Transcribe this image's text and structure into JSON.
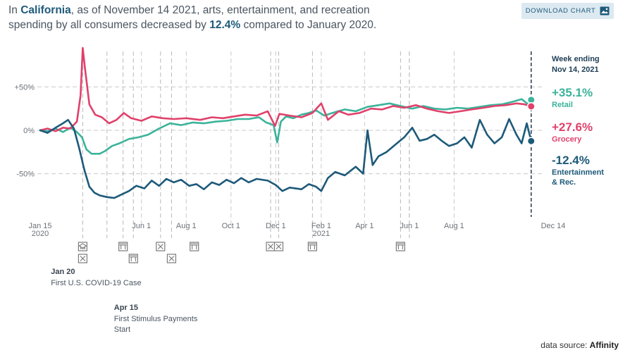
{
  "headline": {
    "prefix": "In ",
    "state": "California",
    "middle": ", as of November 14 2021, arts, entertainment, and recreation spending by all consumers decreased by ",
    "pct": "12.4%",
    "suffix": " compared to January 2020."
  },
  "download_button": {
    "label": "DOWNLOAD CHART",
    "icon": "image-icon"
  },
  "credit": {
    "label": "data source: ",
    "source": "Affinity"
  },
  "colors": {
    "retail": "#3bb39b",
    "grocery": "#e0416b",
    "entertainment": "#1d5a7a",
    "grid": "#c9c9c9",
    "axis_text": "#6b7178"
  },
  "chart_data": {
    "type": "line",
    "title": "",
    "xlabel": "",
    "ylabel": "",
    "ylim": [
      -95,
      95
    ],
    "x_range": [
      "2020-01-15",
      "2021-12-14"
    ],
    "y_ticks": [
      {
        "value": 50,
        "label": "+50%"
      },
      {
        "value": 0,
        "label": "0%"
      },
      {
        "value": -50,
        "label": "-50%"
      }
    ],
    "x_ticks": [
      {
        "date": "2020-01-15",
        "label": "Jan 15",
        "label2": "2020",
        "grid": false
      },
      {
        "date": "2020-06-01",
        "label": "Jun 1",
        "label2": "",
        "grid": true
      },
      {
        "date": "2020-08-01",
        "label": "Aug 1",
        "label2": "",
        "grid": true
      },
      {
        "date": "2020-10-01",
        "label": "Oct 1",
        "label2": "",
        "grid": true
      },
      {
        "date": "2020-12-01",
        "label": "Dec 1",
        "label2": "",
        "grid": true
      },
      {
        "date": "2021-02-01",
        "label": "Feb 1",
        "label2": "2021",
        "grid": true
      },
      {
        "date": "2021-04-01",
        "label": "Apr 1",
        "label2": "",
        "grid": true
      },
      {
        "date": "2021-06-01",
        "label": "Jun 1",
        "label2": "",
        "grid": true
      },
      {
        "date": "2021-08-01",
        "label": "Aug 1",
        "label2": "",
        "grid": true
      },
      {
        "date": "2021-12-14",
        "label": "Dec 14",
        "label2": "",
        "grid": false
      }
    ],
    "event_lines": [
      "2020-03-13",
      "2020-04-15",
      "2020-05-07",
      "2020-05-21",
      "2020-06-27",
      "2020-07-12",
      "2020-11-24",
      "2020-12-05",
      "2021-01-20",
      "2021-05-20",
      "2021-06-01"
    ],
    "event_icons": [
      {
        "date": "2020-03-13",
        "row": 1,
        "icon": "school-icon"
      },
      {
        "date": "2020-03-13",
        "row": 2,
        "icon": "closed-icon"
      },
      {
        "date": "2020-05-07",
        "row": 1,
        "icon": "store-icon"
      },
      {
        "date": "2020-05-21",
        "row": 2,
        "icon": "store-icon"
      },
      {
        "date": "2020-06-27",
        "row": 1,
        "icon": "closed-icon"
      },
      {
        "date": "2020-07-12",
        "row": 2,
        "icon": "closed-icon"
      },
      {
        "date": "2020-08-12",
        "row": 1,
        "icon": "store-icon"
      },
      {
        "date": "2020-11-24",
        "row": 1,
        "icon": "closed-icon"
      },
      {
        "date": "2020-12-05",
        "row": 1,
        "icon": "closed-icon"
      },
      {
        "date": "2021-01-20",
        "row": 1,
        "icon": "store-icon"
      },
      {
        "date": "2021-05-20",
        "row": 1,
        "icon": "store-icon"
      }
    ],
    "annotations": [
      {
        "date": "2020-01-20",
        "title": "Jan 20",
        "lines": [
          "First U.S. COVID-19 Case"
        ]
      },
      {
        "date": "2020-04-15",
        "title": "Apr 15",
        "lines": [
          "First Stimulus Payments",
          "Start"
        ]
      }
    ],
    "week_ending": {
      "date": "2021-11-14",
      "label1": "Week ending",
      "label2": "Nov 14, 2021"
    },
    "series": [
      {
        "name": "Retail",
        "key": "retail",
        "end_label": "+35.1%",
        "end_value": 35.1,
        "points": [
          [
            "2020-01-15",
            0
          ],
          [
            "2020-01-25",
            -1
          ],
          [
            "2020-02-05",
            2
          ],
          [
            "2020-02-15",
            -2
          ],
          [
            "2020-02-25",
            3
          ],
          [
            "2020-03-05",
            -2
          ],
          [
            "2020-03-12",
            -8
          ],
          [
            "2020-03-18",
            -22
          ],
          [
            "2020-03-25",
            -27
          ],
          [
            "2020-04-05",
            -27
          ],
          [
            "2020-04-12",
            -24
          ],
          [
            "2020-04-22",
            -18
          ],
          [
            "2020-05-02",
            -15
          ],
          [
            "2020-05-15",
            -10
          ],
          [
            "2020-05-28",
            -8
          ],
          [
            "2020-06-10",
            -5
          ],
          [
            "2020-06-25",
            2
          ],
          [
            "2020-07-10",
            8
          ],
          [
            "2020-07-25",
            6
          ],
          [
            "2020-08-10",
            9
          ],
          [
            "2020-08-25",
            8
          ],
          [
            "2020-09-10",
            10
          ],
          [
            "2020-09-25",
            11
          ],
          [
            "2020-10-10",
            13
          ],
          [
            "2020-10-25",
            13
          ],
          [
            "2020-11-08",
            15
          ],
          [
            "2020-11-18",
            9
          ],
          [
            "2020-11-28",
            6
          ],
          [
            "2020-12-03",
            -14
          ],
          [
            "2020-12-08",
            10
          ],
          [
            "2020-12-15",
            16
          ],
          [
            "2020-12-25",
            14
          ],
          [
            "2021-01-05",
            18
          ],
          [
            "2021-01-15",
            20
          ],
          [
            "2021-01-25",
            23
          ],
          [
            "2021-02-05",
            17
          ],
          [
            "2021-02-20",
            21
          ],
          [
            "2021-03-05",
            24
          ],
          [
            "2021-03-20",
            22
          ],
          [
            "2021-04-05",
            27
          ],
          [
            "2021-04-20",
            29
          ],
          [
            "2021-05-05",
            31
          ],
          [
            "2021-05-20",
            28
          ],
          [
            "2021-06-05",
            25
          ],
          [
            "2021-06-20",
            28
          ],
          [
            "2021-07-05",
            25
          ],
          [
            "2021-07-20",
            24
          ],
          [
            "2021-08-05",
            26
          ],
          [
            "2021-08-20",
            25
          ],
          [
            "2021-09-05",
            27
          ],
          [
            "2021-09-20",
            29
          ],
          [
            "2021-10-05",
            30
          ],
          [
            "2021-10-20",
            33
          ],
          [
            "2021-11-01",
            36
          ],
          [
            "2021-11-10",
            30
          ],
          [
            "2021-11-14",
            35.1
          ]
        ]
      },
      {
        "name": "Grocery",
        "key": "grocery",
        "end_label": "+27.6%",
        "end_value": 27.6,
        "points": [
          [
            "2020-01-15",
            0
          ],
          [
            "2020-01-25",
            2
          ],
          [
            "2020-02-05",
            -1
          ],
          [
            "2020-02-15",
            3
          ],
          [
            "2020-02-25",
            2
          ],
          [
            "2020-03-05",
            10
          ],
          [
            "2020-03-10",
            40
          ],
          [
            "2020-03-13",
            95
          ],
          [
            "2020-03-16",
            72
          ],
          [
            "2020-03-22",
            30
          ],
          [
            "2020-03-30",
            18
          ],
          [
            "2020-04-08",
            15
          ],
          [
            "2020-04-18",
            8
          ],
          [
            "2020-04-28",
            12
          ],
          [
            "2020-05-08",
            20
          ],
          [
            "2020-05-18",
            14
          ],
          [
            "2020-06-01",
            11
          ],
          [
            "2020-06-15",
            16
          ],
          [
            "2020-06-30",
            14
          ],
          [
            "2020-07-15",
            13
          ],
          [
            "2020-08-01",
            14
          ],
          [
            "2020-08-20",
            12
          ],
          [
            "2020-09-05",
            15
          ],
          [
            "2020-09-20",
            14
          ],
          [
            "2020-10-05",
            16
          ],
          [
            "2020-10-20",
            18
          ],
          [
            "2020-11-05",
            17
          ],
          [
            "2020-11-20",
            22
          ],
          [
            "2020-11-30",
            5
          ],
          [
            "2020-12-06",
            19
          ],
          [
            "2020-12-20",
            17
          ],
          [
            "2021-01-05",
            15
          ],
          [
            "2021-01-20",
            20
          ],
          [
            "2021-02-01",
            31
          ],
          [
            "2021-02-10",
            12
          ],
          [
            "2021-02-25",
            22
          ],
          [
            "2021-03-10",
            18
          ],
          [
            "2021-03-25",
            20
          ],
          [
            "2021-04-10",
            25
          ],
          [
            "2021-04-25",
            24
          ],
          [
            "2021-05-10",
            28
          ],
          [
            "2021-05-25",
            26
          ],
          [
            "2021-06-10",
            29
          ],
          [
            "2021-06-25",
            25
          ],
          [
            "2021-07-10",
            22
          ],
          [
            "2021-07-25",
            20
          ],
          [
            "2021-08-10",
            22
          ],
          [
            "2021-08-25",
            24
          ],
          [
            "2021-09-10",
            26
          ],
          [
            "2021-09-25",
            28
          ],
          [
            "2021-10-10",
            29
          ],
          [
            "2021-10-25",
            31
          ],
          [
            "2021-11-05",
            30
          ],
          [
            "2021-11-14",
            27.6
          ]
        ]
      },
      {
        "name": "Entertainment & Rec.",
        "key": "entertainment",
        "end_label": "-12.4%",
        "end_value": -12.4,
        "end_label_lines": [
          "Entertainment",
          "& Rec."
        ],
        "points": [
          [
            "2020-01-15",
            0
          ],
          [
            "2020-01-25",
            -3
          ],
          [
            "2020-02-05",
            3
          ],
          [
            "2020-02-15",
            8
          ],
          [
            "2020-02-22",
            12
          ],
          [
            "2020-03-01",
            2
          ],
          [
            "2020-03-08",
            -20
          ],
          [
            "2020-03-15",
            -45
          ],
          [
            "2020-03-22",
            -65
          ],
          [
            "2020-03-29",
            -72
          ],
          [
            "2020-04-05",
            -75
          ],
          [
            "2020-04-15",
            -77
          ],
          [
            "2020-04-25",
            -78
          ],
          [
            "2020-05-05",
            -74
          ],
          [
            "2020-05-15",
            -70
          ],
          [
            "2020-05-25",
            -64
          ],
          [
            "2020-06-05",
            -67
          ],
          [
            "2020-06-15",
            -58
          ],
          [
            "2020-06-25",
            -64
          ],
          [
            "2020-07-05",
            -56
          ],
          [
            "2020-07-15",
            -60
          ],
          [
            "2020-07-25",
            -57
          ],
          [
            "2020-08-05",
            -64
          ],
          [
            "2020-08-15",
            -62
          ],
          [
            "2020-08-25",
            -68
          ],
          [
            "2020-09-05",
            -60
          ],
          [
            "2020-09-15",
            -63
          ],
          [
            "2020-09-25",
            -57
          ],
          [
            "2020-10-05",
            -61
          ],
          [
            "2020-10-15",
            -55
          ],
          [
            "2020-10-25",
            -60
          ],
          [
            "2020-11-05",
            -56
          ],
          [
            "2020-11-20",
            -58
          ],
          [
            "2020-12-01",
            -63
          ],
          [
            "2020-12-10",
            -70
          ],
          [
            "2020-12-20",
            -66
          ],
          [
            "2021-01-05",
            -68
          ],
          [
            "2021-01-15",
            -62
          ],
          [
            "2021-01-25",
            -65
          ],
          [
            "2021-02-01",
            -70
          ],
          [
            "2021-02-10",
            -55
          ],
          [
            "2021-02-20",
            -48
          ],
          [
            "2021-03-05",
            -52
          ],
          [
            "2021-03-20",
            -42
          ],
          [
            "2021-03-30",
            -50
          ],
          [
            "2021-04-05",
            0
          ],
          [
            "2021-04-12",
            -40
          ],
          [
            "2021-04-20",
            -30
          ],
          [
            "2021-05-01",
            -25
          ],
          [
            "2021-05-15",
            -15
          ],
          [
            "2021-05-25",
            -8
          ],
          [
            "2021-06-05",
            3
          ],
          [
            "2021-06-15",
            -12
          ],
          [
            "2021-06-25",
            -10
          ],
          [
            "2021-07-05",
            -5
          ],
          [
            "2021-07-15",
            -12
          ],
          [
            "2021-07-25",
            -18
          ],
          [
            "2021-08-05",
            -15
          ],
          [
            "2021-08-15",
            -8
          ],
          [
            "2021-08-25",
            -20
          ],
          [
            "2021-09-05",
            12
          ],
          [
            "2021-09-15",
            -5
          ],
          [
            "2021-09-25",
            -15
          ],
          [
            "2021-10-05",
            -8
          ],
          [
            "2021-10-15",
            13
          ],
          [
            "2021-10-25",
            -5
          ],
          [
            "2021-11-01",
            -15
          ],
          [
            "2021-11-08",
            8
          ],
          [
            "2021-11-14",
            -12.4
          ]
        ]
      }
    ]
  }
}
